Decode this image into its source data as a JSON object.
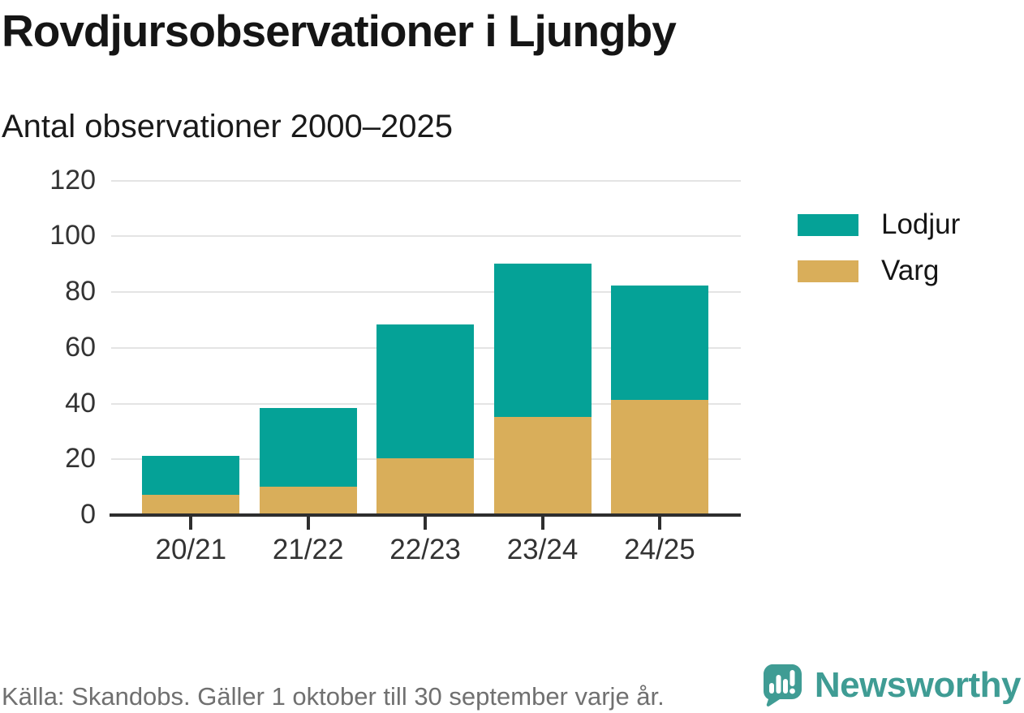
{
  "header": {
    "title": "Rovdjursobservationer i Ljungby",
    "subtitle": "Antal observationer 2000–2025"
  },
  "chart_data": {
    "type": "bar",
    "stacked": true,
    "title": "Rovdjursobservationer i Ljungby",
    "subtitle": "Antal observationer 2000–2025",
    "categories": [
      "20/21",
      "21/22",
      "22/23",
      "23/24",
      "24/25"
    ],
    "series": [
      {
        "name": "Lodjur",
        "color": "#05a297",
        "values": [
          14,
          28,
          48,
          55,
          41
        ]
      },
      {
        "name": "Varg",
        "color": "#d9ae5a",
        "values": [
          7,
          10,
          20,
          35,
          41
        ]
      }
    ],
    "stack_order_bottom_to_top": [
      "Varg",
      "Lodjur"
    ],
    "stack_totals": [
      21,
      38,
      68,
      90,
      82
    ],
    "xlabel": "",
    "ylabel": "",
    "ylim": [
      0,
      120
    ],
    "yticks": [
      0,
      20,
      40,
      60,
      80,
      100,
      120
    ],
    "grid": "horizontal",
    "legend_position": "right"
  },
  "colors": {
    "lodjur": "#05a297",
    "varg": "#d9ae5a",
    "gridline": "#e4e4e4",
    "axis": "#2e2e2e",
    "text": "#151515",
    "muted_text": "#707070"
  },
  "footer": {
    "source": "Källa: Skandobs. Gäller 1 oktober till 30 september varje år.",
    "brand": {
      "name": "Newsworthy",
      "color": "#3f9c94",
      "icon": "newsworthy-chart-bubble-icon"
    }
  }
}
